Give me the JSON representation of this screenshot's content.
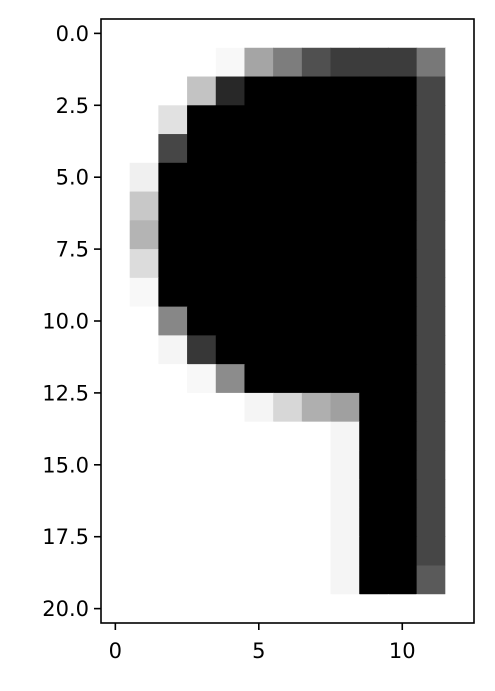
{
  "chart_data": {
    "type": "heatmap",
    "colormap": "gray",
    "title": "",
    "xlabel": "",
    "ylabel": "",
    "xlim": [
      -0.5,
      12.5
    ],
    "ylim": [
      20.5,
      -0.5
    ],
    "x_ticks": [
      0,
      5,
      10
    ],
    "x_tick_labels": [
      "0",
      "5",
      "10"
    ],
    "y_ticks": [
      0,
      2.5,
      5,
      7.5,
      10,
      12.5,
      15,
      17.5,
      20
    ],
    "y_tick_labels": [
      "0.0",
      "2.5",
      "5.0",
      "7.5",
      "10.0",
      "12.5",
      "15.0",
      "17.5",
      "20.0"
    ],
    "value_range": [
      0,
      255
    ],
    "note_values": "pixel intensity, 0 = black, 255 = white",
    "grid": [
      [
        255,
        255,
        255,
        255,
        255,
        255,
        255,
        255,
        255,
        255,
        255,
        255,
        255
      ],
      [
        255,
        255,
        255,
        255,
        248,
        165,
        125,
        80,
        60,
        60,
        60,
        120,
        255
      ],
      [
        255,
        255,
        255,
        195,
        40,
        0,
        0,
        0,
        0,
        0,
        0,
        70,
        255
      ],
      [
        255,
        255,
        225,
        0,
        0,
        0,
        0,
        0,
        0,
        0,
        0,
        70,
        255
      ],
      [
        255,
        255,
        70,
        0,
        0,
        0,
        0,
        0,
        0,
        0,
        0,
        70,
        255
      ],
      [
        255,
        240,
        0,
        0,
        0,
        0,
        0,
        0,
        0,
        0,
        0,
        70,
        255
      ],
      [
        255,
        200,
        0,
        0,
        0,
        0,
        0,
        0,
        0,
        0,
        0,
        70,
        255
      ],
      [
        255,
        180,
        0,
        0,
        0,
        0,
        0,
        0,
        0,
        0,
        0,
        70,
        255
      ],
      [
        255,
        220,
        0,
        0,
        0,
        0,
        0,
        0,
        0,
        0,
        0,
        70,
        255
      ],
      [
        255,
        248,
        0,
        0,
        0,
        0,
        0,
        0,
        0,
        0,
        0,
        70,
        255
      ],
      [
        255,
        255,
        135,
        0,
        0,
        0,
        0,
        0,
        0,
        0,
        0,
        70,
        255
      ],
      [
        255,
        255,
        245,
        55,
        0,
        0,
        0,
        0,
        0,
        0,
        0,
        70,
        255
      ],
      [
        255,
        255,
        255,
        248,
        140,
        0,
        0,
        0,
        0,
        0,
        0,
        70,
        255
      ],
      [
        255,
        255,
        255,
        255,
        255,
        245,
        215,
        175,
        160,
        0,
        0,
        70,
        255
      ],
      [
        255,
        255,
        255,
        255,
        255,
        255,
        255,
        255,
        245,
        0,
        0,
        70,
        255
      ],
      [
        255,
        255,
        255,
        255,
        255,
        255,
        255,
        255,
        245,
        0,
        0,
        70,
        255
      ],
      [
        255,
        255,
        255,
        255,
        255,
        255,
        255,
        255,
        245,
        0,
        0,
        70,
        255
      ],
      [
        255,
        255,
        255,
        255,
        255,
        255,
        255,
        255,
        245,
        0,
        0,
        70,
        255
      ],
      [
        255,
        255,
        255,
        255,
        255,
        255,
        255,
        255,
        245,
        0,
        0,
        70,
        255
      ],
      [
        255,
        255,
        255,
        255,
        255,
        255,
        255,
        255,
        245,
        0,
        0,
        90,
        255
      ],
      [
        255,
        255,
        255,
        255,
        255,
        255,
        255,
        255,
        255,
        255,
        255,
        255,
        255
      ]
    ]
  }
}
